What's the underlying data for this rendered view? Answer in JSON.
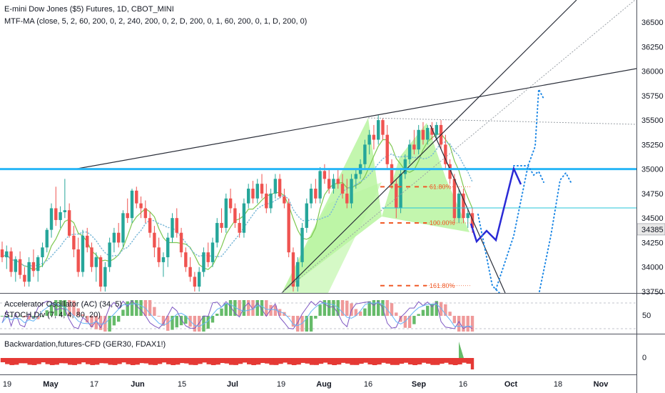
{
  "header": {
    "title": "E-mini Dow Jones ($5) Futures, 1D, CBOT_MINI",
    "indicator": "MTF-MA (close, 5, 2, 60, 200, 0, 2, 240, 200, 0, 2, D, 200, 0, 1, 60, 200, 0, 1, D, 200, 0)"
  },
  "subpanes": {
    "ac_label": "Accelerator Oscillator (AC) (34, 5)",
    "stoch_label": "STOCH Div (7, 4, 4, 80, 20)",
    "ac_axis": "50",
    "backwardation_label": "Backwardation,futures-CFD (GER30, FDAX1!)",
    "backwardation_axis": "0"
  },
  "price_axis": {
    "ticks": [
      "36500",
      "36250",
      "36000",
      "35750",
      "35500",
      "35250",
      "35000",
      "34750",
      "34500",
      "34250",
      "34000",
      "33750"
    ],
    "current_price": "34385"
  },
  "time_axis": {
    "labels": [
      "19",
      "May",
      "17",
      "Jun",
      "15",
      "Jul",
      "19",
      "Aug",
      "16",
      "Sep",
      "16",
      "Oct",
      "18",
      "Nov"
    ]
  },
  "fib_levels": [
    "61.80%",
    "100.00%",
    "161.80%"
  ],
  "colors": {
    "up": "#26a69a",
    "down": "#ef5350",
    "resistance": "#29b6f6",
    "projection_solid": "#2a2ad6",
    "projection_dotted": "#1e88e5",
    "pattern_fill": "#b9f5a0",
    "fib": "#f05a28",
    "ma": "#7ec850"
  },
  "chart_data": {
    "type": "candlestick",
    "symbol": "E-mini Dow Jones ($5) Futures",
    "interval": "1D",
    "y_range": [
      33700,
      36650
    ],
    "candles": [
      {
        "o": 34180,
        "h": 34260,
        "l": 34050,
        "c": 34100
      },
      {
        "o": 34100,
        "h": 34220,
        "l": 33980,
        "c": 34160
      },
      {
        "o": 34160,
        "h": 34200,
        "l": 33900,
        "c": 33950
      },
      {
        "o": 33950,
        "h": 34110,
        "l": 33850,
        "c": 34080
      },
      {
        "o": 34080,
        "h": 34160,
        "l": 33880,
        "c": 33920
      },
      {
        "o": 33920,
        "h": 34000,
        "l": 33800,
        "c": 33850
      },
      {
        "o": 33850,
        "h": 34100,
        "l": 33800,
        "c": 34050
      },
      {
        "o": 34050,
        "h": 34180,
        "l": 33900,
        "c": 33960
      },
      {
        "o": 33960,
        "h": 34120,
        "l": 33850,
        "c": 34100
      },
      {
        "o": 34100,
        "h": 34250,
        "l": 34000,
        "c": 34200
      },
      {
        "o": 34200,
        "h": 34400,
        "l": 34150,
        "c": 34380
      },
      {
        "o": 34380,
        "h": 34650,
        "l": 34300,
        "c": 34600
      },
      {
        "o": 34600,
        "h": 34820,
        "l": 34420,
        "c": 34480
      },
      {
        "o": 34480,
        "h": 34620,
        "l": 34400,
        "c": 34560
      },
      {
        "o": 34560,
        "h": 34900,
        "l": 34500,
        "c": 34580
      },
      {
        "o": 34580,
        "h": 34650,
        "l": 34300,
        "c": 34320
      },
      {
        "o": 34320,
        "h": 34420,
        "l": 34100,
        "c": 34180
      },
      {
        "o": 34180,
        "h": 34300,
        "l": 33900,
        "c": 33950
      },
      {
        "o": 33950,
        "h": 34380,
        "l": 33900,
        "c": 34320
      },
      {
        "o": 34320,
        "h": 34400,
        "l": 34150,
        "c": 34200
      },
      {
        "o": 34200,
        "h": 34250,
        "l": 33950,
        "c": 34000
      },
      {
        "o": 34000,
        "h": 34150,
        "l": 33850,
        "c": 34100
      },
      {
        "o": 34100,
        "h": 34120,
        "l": 33750,
        "c": 33800
      },
      {
        "o": 33800,
        "h": 34050,
        "l": 33750,
        "c": 34000
      },
      {
        "o": 34000,
        "h": 34300,
        "l": 33950,
        "c": 34250
      },
      {
        "o": 34250,
        "h": 34400,
        "l": 34150,
        "c": 34350
      },
      {
        "o": 34350,
        "h": 34450,
        "l": 34200,
        "c": 34250
      },
      {
        "o": 34250,
        "h": 34580,
        "l": 34200,
        "c": 34550
      },
      {
        "o": 34550,
        "h": 34700,
        "l": 34450,
        "c": 34500
      },
      {
        "o": 34500,
        "h": 34800,
        "l": 34450,
        "c": 34780
      },
      {
        "o": 34780,
        "h": 34820,
        "l": 34600,
        "c": 34650
      },
      {
        "o": 34650,
        "h": 34720,
        "l": 34500,
        "c": 34600
      },
      {
        "o": 34600,
        "h": 34680,
        "l": 34450,
        "c": 34500
      },
      {
        "o": 34500,
        "h": 34560,
        "l": 34300,
        "c": 34350
      },
      {
        "o": 34350,
        "h": 34420,
        "l": 34100,
        "c": 34200
      },
      {
        "o": 34200,
        "h": 34300,
        "l": 34000,
        "c": 34050
      },
      {
        "o": 34050,
        "h": 34150,
        "l": 33900,
        "c": 34100
      },
      {
        "o": 34100,
        "h": 34350,
        "l": 34000,
        "c": 34300
      },
      {
        "o": 34300,
        "h": 34550,
        "l": 34250,
        "c": 34500
      },
      {
        "o": 34500,
        "h": 34600,
        "l": 34300,
        "c": 34350
      },
      {
        "o": 34350,
        "h": 34400,
        "l": 34100,
        "c": 34150
      },
      {
        "o": 34150,
        "h": 34200,
        "l": 33950,
        "c": 34000
      },
      {
        "o": 34000,
        "h": 34100,
        "l": 33850,
        "c": 33900
      },
      {
        "o": 33900,
        "h": 33950,
        "l": 33750,
        "c": 33800
      },
      {
        "o": 33800,
        "h": 34000,
        "l": 33750,
        "c": 33950
      },
      {
        "o": 33950,
        "h": 34200,
        "l": 33900,
        "c": 34150
      },
      {
        "o": 34150,
        "h": 34250,
        "l": 34000,
        "c": 34050
      },
      {
        "o": 34050,
        "h": 34300,
        "l": 34000,
        "c": 34250
      },
      {
        "o": 34250,
        "h": 34500,
        "l": 34200,
        "c": 34450
      },
      {
        "o": 34450,
        "h": 34600,
        "l": 34350,
        "c": 34400
      },
      {
        "o": 34400,
        "h": 34750,
        "l": 34350,
        "c": 34700
      },
      {
        "o": 34700,
        "h": 34800,
        "l": 34550,
        "c": 34600
      },
      {
        "o": 34600,
        "h": 34650,
        "l": 34400,
        "c": 34450
      },
      {
        "o": 34450,
        "h": 34550,
        "l": 34300,
        "c": 34350
      },
      {
        "o": 34350,
        "h": 34700,
        "l": 34300,
        "c": 34650
      },
      {
        "o": 34650,
        "h": 34850,
        "l": 34600,
        "c": 34800
      },
      {
        "o": 34800,
        "h": 34880,
        "l": 34650,
        "c": 34700
      },
      {
        "o": 34700,
        "h": 34900,
        "l": 34650,
        "c": 34850
      },
      {
        "o": 34850,
        "h": 34950,
        "l": 34700,
        "c": 34750
      },
      {
        "o": 34750,
        "h": 34850,
        "l": 34550,
        "c": 34600
      },
      {
        "o": 34600,
        "h": 34800,
        "l": 34550,
        "c": 34750
      },
      {
        "o": 34750,
        "h": 34950,
        "l": 34700,
        "c": 34900
      },
      {
        "o": 34900,
        "h": 34950,
        "l": 34700,
        "c": 34720
      },
      {
        "o": 34720,
        "h": 34800,
        "l": 34600,
        "c": 34650
      },
      {
        "o": 34650,
        "h": 34700,
        "l": 34100,
        "c": 34150
      },
      {
        "o": 34150,
        "h": 34200,
        "l": 33750,
        "c": 33800
      },
      {
        "o": 33800,
        "h": 34100,
        "l": 33750,
        "c": 34050
      },
      {
        "o": 34050,
        "h": 34450,
        "l": 34000,
        "c": 34400
      },
      {
        "o": 34400,
        "h": 34700,
        "l": 34350,
        "c": 34650
      },
      {
        "o": 34650,
        "h": 34850,
        "l": 34600,
        "c": 34800
      },
      {
        "o": 34800,
        "h": 34900,
        "l": 34650,
        "c": 34700
      },
      {
        "o": 34700,
        "h": 35020,
        "l": 34650,
        "c": 34980
      },
      {
        "o": 34980,
        "h": 35050,
        "l": 34850,
        "c": 34900
      },
      {
        "o": 34900,
        "h": 35000,
        "l": 34750,
        "c": 34800
      },
      {
        "o": 34800,
        "h": 34950,
        "l": 34750,
        "c": 34900
      },
      {
        "o": 34900,
        "h": 35000,
        "l": 34800,
        "c": 34850
      },
      {
        "o": 34850,
        "h": 34950,
        "l": 34700,
        "c": 34750
      },
      {
        "o": 34750,
        "h": 34900,
        "l": 34600,
        "c": 34650
      },
      {
        "o": 34650,
        "h": 34950,
        "l": 34600,
        "c": 34900
      },
      {
        "o": 34900,
        "h": 35000,
        "l": 34800,
        "c": 34950
      },
      {
        "o": 34950,
        "h": 35100,
        "l": 34900,
        "c": 35050
      },
      {
        "o": 35050,
        "h": 35300,
        "l": 35000,
        "c": 35250
      },
      {
        "o": 35250,
        "h": 35400,
        "l": 35150,
        "c": 35350
      },
      {
        "o": 35350,
        "h": 35450,
        "l": 35200,
        "c": 35300
      },
      {
        "o": 35300,
        "h": 35550,
        "l": 35250,
        "c": 35500
      },
      {
        "o": 35500,
        "h": 35520,
        "l": 35300,
        "c": 35350
      },
      {
        "o": 35350,
        "h": 35450,
        "l": 35000,
        "c": 35050
      },
      {
        "o": 35050,
        "h": 35100,
        "l": 34800,
        "c": 34850
      },
      {
        "o": 34850,
        "h": 34900,
        "l": 34500,
        "c": 34600
      },
      {
        "o": 34600,
        "h": 35000,
        "l": 34550,
        "c": 34950
      },
      {
        "o": 34950,
        "h": 35150,
        "l": 34900,
        "c": 35100
      },
      {
        "o": 35100,
        "h": 35300,
        "l": 35050,
        "c": 35250
      },
      {
        "o": 35250,
        "h": 35400,
        "l": 35150,
        "c": 35200
      },
      {
        "o": 35200,
        "h": 35450,
        "l": 35150,
        "c": 35400
      },
      {
        "o": 35400,
        "h": 35480,
        "l": 35250,
        "c": 35300
      },
      {
        "o": 35300,
        "h": 35450,
        "l": 35250,
        "c": 35420
      },
      {
        "o": 35420,
        "h": 35480,
        "l": 35300,
        "c": 35350
      },
      {
        "o": 35350,
        "h": 35480,
        "l": 35300,
        "c": 35450
      },
      {
        "o": 35450,
        "h": 35500,
        "l": 35200,
        "c": 35250
      },
      {
        "o": 35250,
        "h": 35350,
        "l": 35000,
        "c": 35050
      },
      {
        "o": 35050,
        "h": 35100,
        "l": 34850,
        "c": 34900
      },
      {
        "o": 34900,
        "h": 34950,
        "l": 34450,
        "c": 34500
      },
      {
        "o": 34500,
        "h": 34800,
        "l": 34450,
        "c": 34750
      },
      {
        "o": 34750,
        "h": 34800,
        "l": 34450,
        "c": 34500
      },
      {
        "o": 34500,
        "h": 34600,
        "l": 34400,
        "c": 34550
      },
      {
        "o": 34550,
        "h": 34600,
        "l": 34350,
        "c": 34400
      }
    ],
    "resistance_level": 35000,
    "fib_prices": {
      "61.80%": 34820,
      "100.00%": 34450,
      "161.80%": 33810
    },
    "current_price": 34385
  }
}
